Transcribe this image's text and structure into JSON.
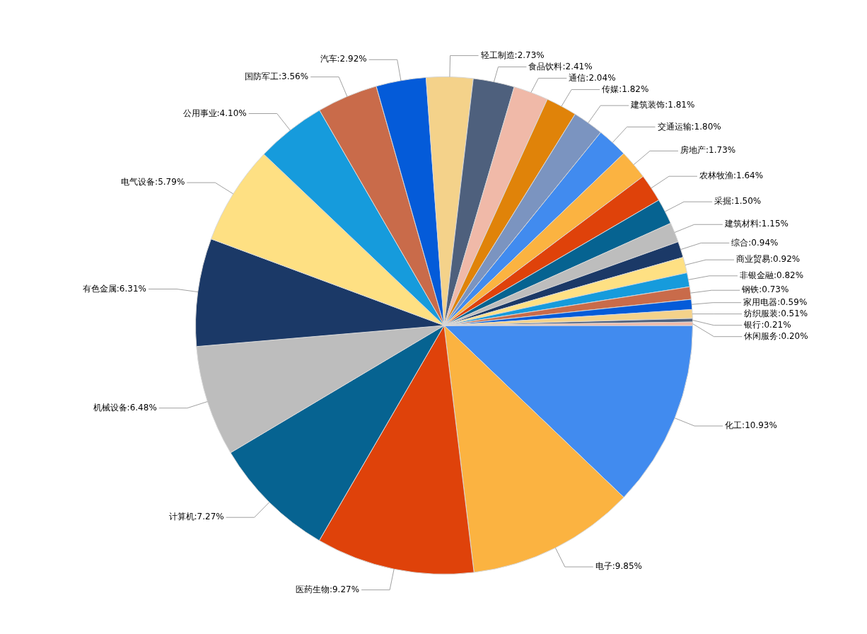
{
  "chart_data": {
    "type": "pie",
    "categories": [
      "化工",
      "电子",
      "医药生物",
      "计算机",
      "机械设备",
      "有色金属",
      "电气设备",
      "公用事业",
      "国防军工",
      "汽车",
      "轻工制造",
      "食品饮料",
      "通信",
      "传媒",
      "建筑装饰",
      "交通运输",
      "房地产",
      "农林牧渔",
      "采掘",
      "建筑材料",
      "综合",
      "商业贸易",
      "非银金融",
      "钢铁",
      "家用电器",
      "纺织服装",
      "银行",
      "休闲服务"
    ],
    "values": [
      10.93,
      9.85,
      9.27,
      7.27,
      6.48,
      6.31,
      5.79,
      4.1,
      3.56,
      2.92,
      2.73,
      2.41,
      2.04,
      1.82,
      1.81,
      1.8,
      1.73,
      1.64,
      1.5,
      1.15,
      0.94,
      0.92,
      0.82,
      0.73,
      0.59,
      0.51,
      0.21,
      0.2
    ],
    "value_labels": [
      "10.93%",
      "9.85%",
      "9.27%",
      "7.27%",
      "6.48%",
      "6.31%",
      "5.79%",
      "4.10%",
      "3.56%",
      "2.92%",
      "2.73%",
      "2.41%",
      "2.04%",
      "1.82%",
      "1.81%",
      "1.80%",
      "1.73%",
      "1.64%",
      "1.50%",
      "1.15%",
      "0.94%",
      "0.92%",
      "0.82%",
      "0.73%",
      "0.59%",
      "0.51%",
      "0.21%",
      "0.20%"
    ],
    "colors": [
      "#418bef",
      "#fbb341",
      "#df420a",
      "#066391",
      "#bdbdbd",
      "#1b3967",
      "#fee083",
      "#169bdc",
      "#c96b4a",
      "#045bd9",
      "#f4d28a",
      "#4e607d",
      "#f0b9a8",
      "#e08309",
      "#7b94c0",
      "#418bef",
      "#fbb341",
      "#df420a",
      "#066391",
      "#bdbdbd",
      "#1b3967",
      "#fee083",
      "#169bdc",
      "#c96b4a",
      "#045bd9",
      "#f4d28a",
      "#4e607d",
      "#f0b9a8"
    ],
    "legend": false
  }
}
